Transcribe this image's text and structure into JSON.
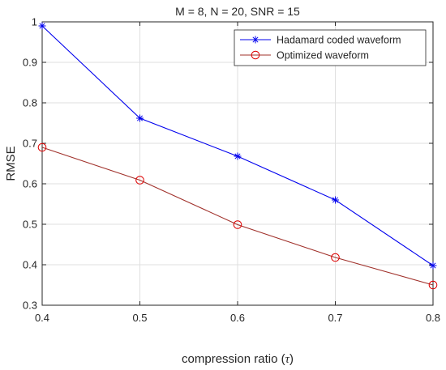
{
  "chart_data": {
    "type": "line",
    "title": "M = 8, N = 20, SNR = 15",
    "xlabel": "compression ratio (τ)",
    "xlabel_main": "compression ratio (",
    "xlabel_symbol": "τ",
    "xlabel_close": ")",
    "ylabel": "RMSE",
    "xlim": [
      0.4,
      0.8
    ],
    "ylim": [
      0.3,
      1.0
    ],
    "x_ticks": [
      "0.4",
      "0.5",
      "0.6",
      "0.7",
      "0.8"
    ],
    "y_ticks": [
      "0.3",
      "0.4",
      "0.5",
      "0.6",
      "0.7",
      "0.8",
      "0.9",
      "1"
    ],
    "x_tick_values": [
      0.4,
      0.5,
      0.6,
      0.7,
      0.8
    ],
    "y_tick_values": [
      0.3,
      0.4,
      0.5,
      0.6,
      0.7,
      0.8,
      0.9,
      1.0
    ],
    "grid": true,
    "legend_position": "top-right",
    "x": [
      0.4,
      0.5,
      0.6,
      0.7,
      0.8
    ],
    "series": [
      {
        "name": "Hadamard coded waveform",
        "values": [
          0.99,
          0.762,
          0.668,
          0.56,
          0.398
        ],
        "color": "#0000ee",
        "marker": "asterisk"
      },
      {
        "name": "Optimized waveform",
        "values": [
          0.69,
          0.609,
          0.499,
          0.418,
          0.35
        ],
        "color": "#dd0000",
        "line_color": "#a0302a",
        "marker": "circle"
      }
    ]
  }
}
